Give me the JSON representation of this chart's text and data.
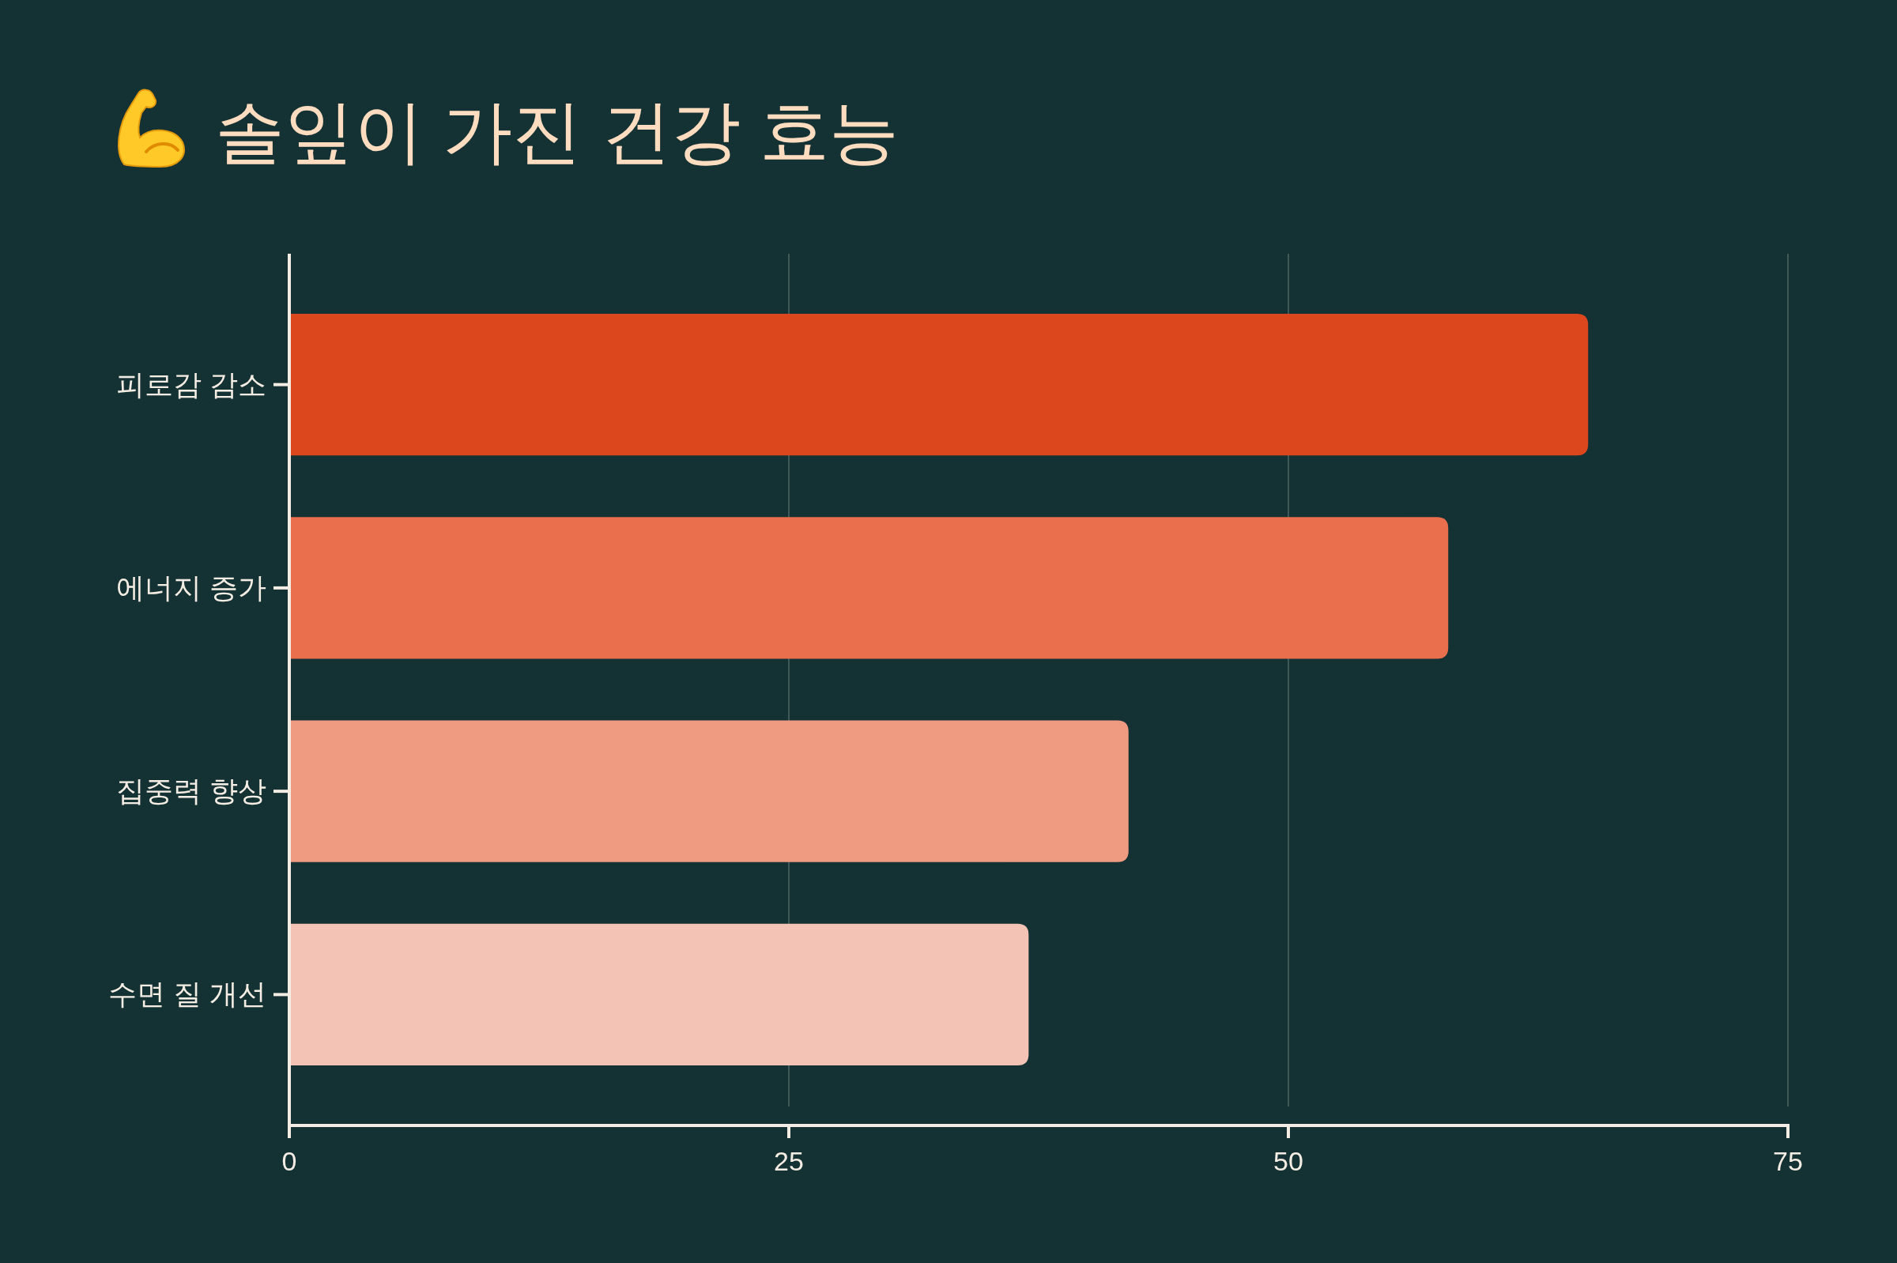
{
  "chart_data": {
    "type": "bar",
    "orientation": "horizontal",
    "title": "솔잎이 가진 건강 효능",
    "categories": [
      "피로감 감소",
      "에너지 증가",
      "집중력 향상",
      "수면 질 개선"
    ],
    "values": [
      65,
      58,
      42,
      37
    ],
    "colors": [
      "#dc471d",
      "#e96f4d",
      "#ef9b81",
      "#f3c4b6"
    ],
    "xlim": [
      0,
      75
    ],
    "xticks": [
      0,
      25,
      50,
      75
    ],
    "grid": "x"
  }
}
